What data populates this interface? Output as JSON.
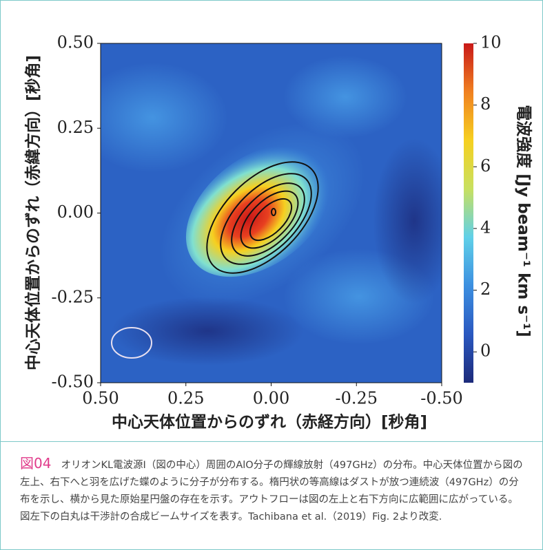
{
  "chart_data": {
    "type": "heatmap",
    "xlabel": "中心天体位置からのずれ（赤経方向）[秒角]",
    "ylabel": "中心天体位置からのずれ（赤緯方向）[秒角]",
    "xlim": [
      0.5,
      -0.5
    ],
    "xticks": [
      {
        "value": 0.5,
        "label": "0.50"
      },
      {
        "value": 0.25,
        "label": "0.25"
      },
      {
        "value": 0,
        "label": "0.00"
      },
      {
        "value": -0.25,
        "label": "-0.25"
      },
      {
        "value": -0.5,
        "label": "-0.50"
      }
    ],
    "ylim": [
      -0.5,
      0.5
    ],
    "yticks": [
      {
        "value": 0.5,
        "label": "0.50"
      },
      {
        "value": 0.25,
        "label": "0.25"
      },
      {
        "value": 0,
        "label": "0.00"
      },
      {
        "value": -0.25,
        "label": "-0.25"
      },
      {
        "value": -0.5,
        "label": "-0.50"
      }
    ],
    "colorbar_label": "電波強度 [Jy beam⁻¹ km s⁻¹]",
    "clim": [
      -1,
      10
    ],
    "cticks": [
      0,
      2,
      4,
      6,
      8,
      10
    ],
    "colormap": [
      "#1c2a7a",
      "#2a58c0",
      "#3c8fe0",
      "#60d0e8",
      "#c8e060",
      "#f6d020",
      "#f08020",
      "#c81818"
    ]
  },
  "caption": {
    "label": "図04",
    "text": "オリオンKL電波源I（図の中心）周囲のAlO分子の輝線放射（497GHz）の分布。中心天体位置から図の左上、右下へと羽を広げた蝶のように分子が分布する。楕円状の等高線はダストが放つ連続波（497GHz）の分布を示し、横から見た原始星円盤の存在を示す。アウトフローは図の左上と右下方向に広範囲に広がっている。図左下の白丸は干渉計の合成ビームサイズを表す。Tachibana et al.（2019）Fig. 2より改変."
  }
}
